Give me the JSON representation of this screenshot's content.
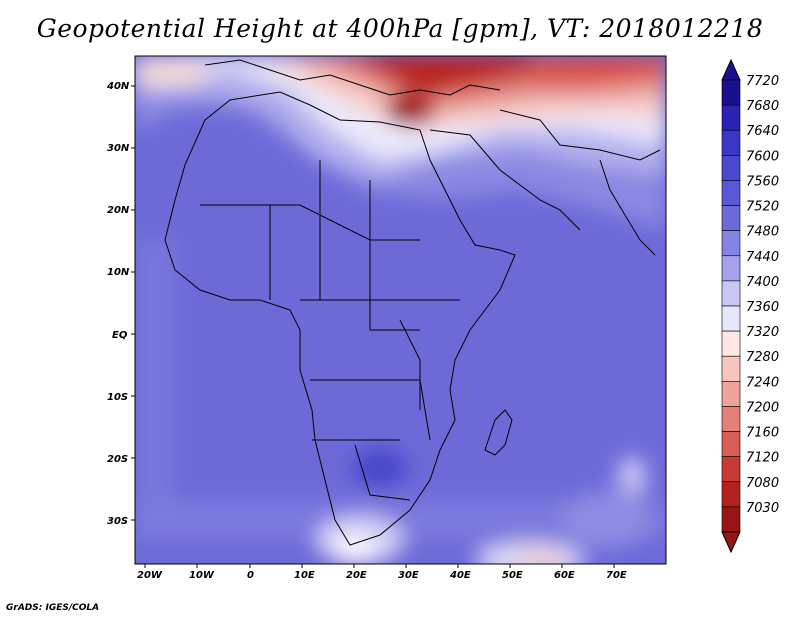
{
  "title": "Geopotential Height at 400hPa [gpm], VT: 2018012218",
  "credit": "GrADS: IGES/COLA",
  "axes": {
    "lat_ticks": [
      "40N",
      "30N",
      "20N",
      "10N",
      "EQ",
      "10S",
      "20S",
      "30S"
    ],
    "lon_ticks": [
      "20W",
      "10W",
      "0",
      "10E",
      "20E",
      "30E",
      "40E",
      "50E",
      "60E",
      "70E"
    ]
  },
  "colorbar": {
    "levels": [
      "7720",
      "7680",
      "7640",
      "7600",
      "7560",
      "7520",
      "7480",
      "7440",
      "7400",
      "7360",
      "7320",
      "7280",
      "7240",
      "7200",
      "7160",
      "7120",
      "7080",
      "7030"
    ],
    "colors": [
      "#1a0f8f",
      "#2a22b3",
      "#3a36c7",
      "#4a48cf",
      "#5a58d6",
      "#6c6ad9",
      "#8684e2",
      "#a4a2ec",
      "#c8c7f5",
      "#e7e6fb",
      "#fde8e6",
      "#f7c5c0",
      "#eea39d",
      "#e48079",
      "#d85d56",
      "#c93a35",
      "#b5211d",
      "#991414"
    ]
  },
  "map": {
    "background": "#6d6ad8",
    "coastline_color": "#000000"
  }
}
